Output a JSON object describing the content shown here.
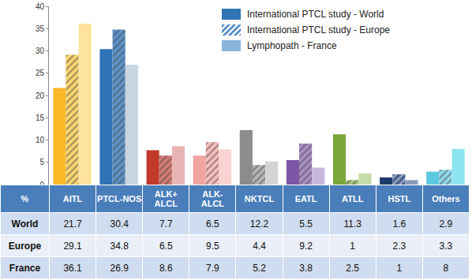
{
  "chart_data": {
    "type": "bar",
    "categories": [
      "AITL",
      "PTCL-NOS",
      "ALK+ ALCL",
      "ALK- ALCL",
      "NKTCL",
      "EATL",
      "ATLL",
      "HSTL",
      "Others"
    ],
    "series": [
      {
        "name": "International PTCL study - World",
        "color": "#2f74b5",
        "marker": "solid",
        "colors": [
          "#fbb829",
          "#2f74b5",
          "#c0392b",
          "#f4a3a3",
          "#8c8c8c",
          "#7d55a6",
          "#7aa73b",
          "#1f3b6b",
          "#5bc8e0"
        ],
        "values": [
          21.7,
          30.4,
          7.7,
          6.5,
          12.2,
          5.5,
          11.3,
          1.6,
          2.9
        ]
      },
      {
        "name": "International PTCL study - Europe",
        "color": "#5d93c9",
        "marker": "hatched",
        "colors": [
          "#fbd56e",
          "#5d93c9",
          "#d47b72",
          "#f7bdbd",
          "#b5b5b5",
          "#a98fc6",
          "#a8c77d",
          "#4a6390",
          "#8fd9ea"
        ],
        "values": [
          29.1,
          34.8,
          6.5,
          9.5,
          4.4,
          9.2,
          1,
          2.3,
          3.3
        ]
      },
      {
        "name": "Lymphopath - France",
        "color": "#8ab4dc",
        "marker": "solid",
        "colors": [
          "#fde39c",
          "#c9d5df",
          "#e8b4b4",
          "#f9d2d2",
          "#d4d4d4",
          "#c8b6dc",
          "#c6dca8",
          "#8a9bb8",
          "#8ee3f0"
        ],
        "values": [
          36.1,
          26.9,
          8.6,
          7.9,
          5.2,
          3.8,
          2.5,
          1,
          8
        ]
      }
    ],
    "ylim": [
      0,
      40
    ],
    "yticks": [
      0,
      5,
      10,
      15,
      20,
      25,
      30,
      35,
      40
    ],
    "grid": false,
    "legend": "upper right",
    "tick_labels": "y"
  },
  "table": {
    "corner": "%",
    "row_labels": [
      "World",
      "Europe",
      "France"
    ]
  }
}
